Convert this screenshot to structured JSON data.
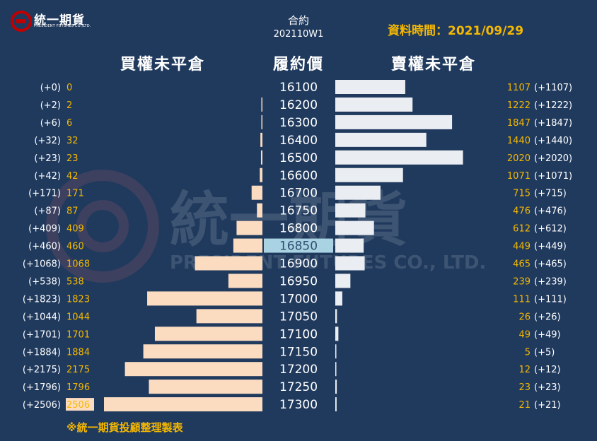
{
  "header": {
    "logo_text": "統一期貨",
    "logo_subtitle": "PRESIDENT FUTURES CO.,LTD.",
    "contract_label": "合約",
    "contract_code": "202110W1",
    "data_time": "資料時間：2021/09/29"
  },
  "watermark": {
    "cn": "統一期貨",
    "en": "PRESIDENT FUTURES CO., LTD."
  },
  "footer_note": "※統一期貨投顧整理製表",
  "colors": {
    "background": "#203a5e",
    "call_bar": "#fcdcc0",
    "put_bar": "#eaedf2",
    "value_text": "#f5b800",
    "change_text": "#ffffff",
    "highlight_strike": "#a9d3e2",
    "accent_red": "#c00000"
  },
  "chart_data": {
    "type": "bar",
    "call_header": "買權未平倉",
    "strike_header": "履約價",
    "put_header": "賣權未平倉",
    "highlight_strike": "16850",
    "strikes": [
      "16100",
      "16200",
      "16300",
      "16400",
      "16500",
      "16600",
      "16700",
      "16750",
      "16800",
      "16850",
      "16900",
      "16950",
      "17000",
      "17050",
      "17100",
      "17150",
      "17200",
      "17250",
      "17300"
    ],
    "call_oi": [
      0,
      2,
      6,
      32,
      23,
      42,
      171,
      87,
      409,
      460,
      1068,
      538,
      1823,
      1044,
      1701,
      1884,
      2175,
      1796,
      2506
    ],
    "call_change": [
      "(+0)",
      "(+2)",
      "(+6)",
      "(+32)",
      "(+23)",
      "(+42)",
      "(+171)",
      "(+87)",
      "(+409)",
      "(+460)",
      "(+1068)",
      "(+538)",
      "(+1823)",
      "(+1044)",
      "(+1701)",
      "(+1884)",
      "(+2175)",
      "(+1796)",
      "(+2506)"
    ],
    "put_oi": [
      1107,
      1222,
      1847,
      1440,
      2020,
      1071,
      715,
      476,
      612,
      449,
      465,
      239,
      111,
      26,
      49,
      5,
      12,
      23,
      21
    ],
    "put_change": [
      "(+1107)",
      "(+1222)",
      "(+1847)",
      "(+1440)",
      "(+2020)",
      "(+1071)",
      "(+715)",
      "(+476)",
      "(+612)",
      "(+449)",
      "(+465)",
      "(+239)",
      "(+111)",
      "(+26)",
      "(+49)",
      "(+5)",
      "(+12)",
      "(+23)",
      "(+21)"
    ]
  }
}
